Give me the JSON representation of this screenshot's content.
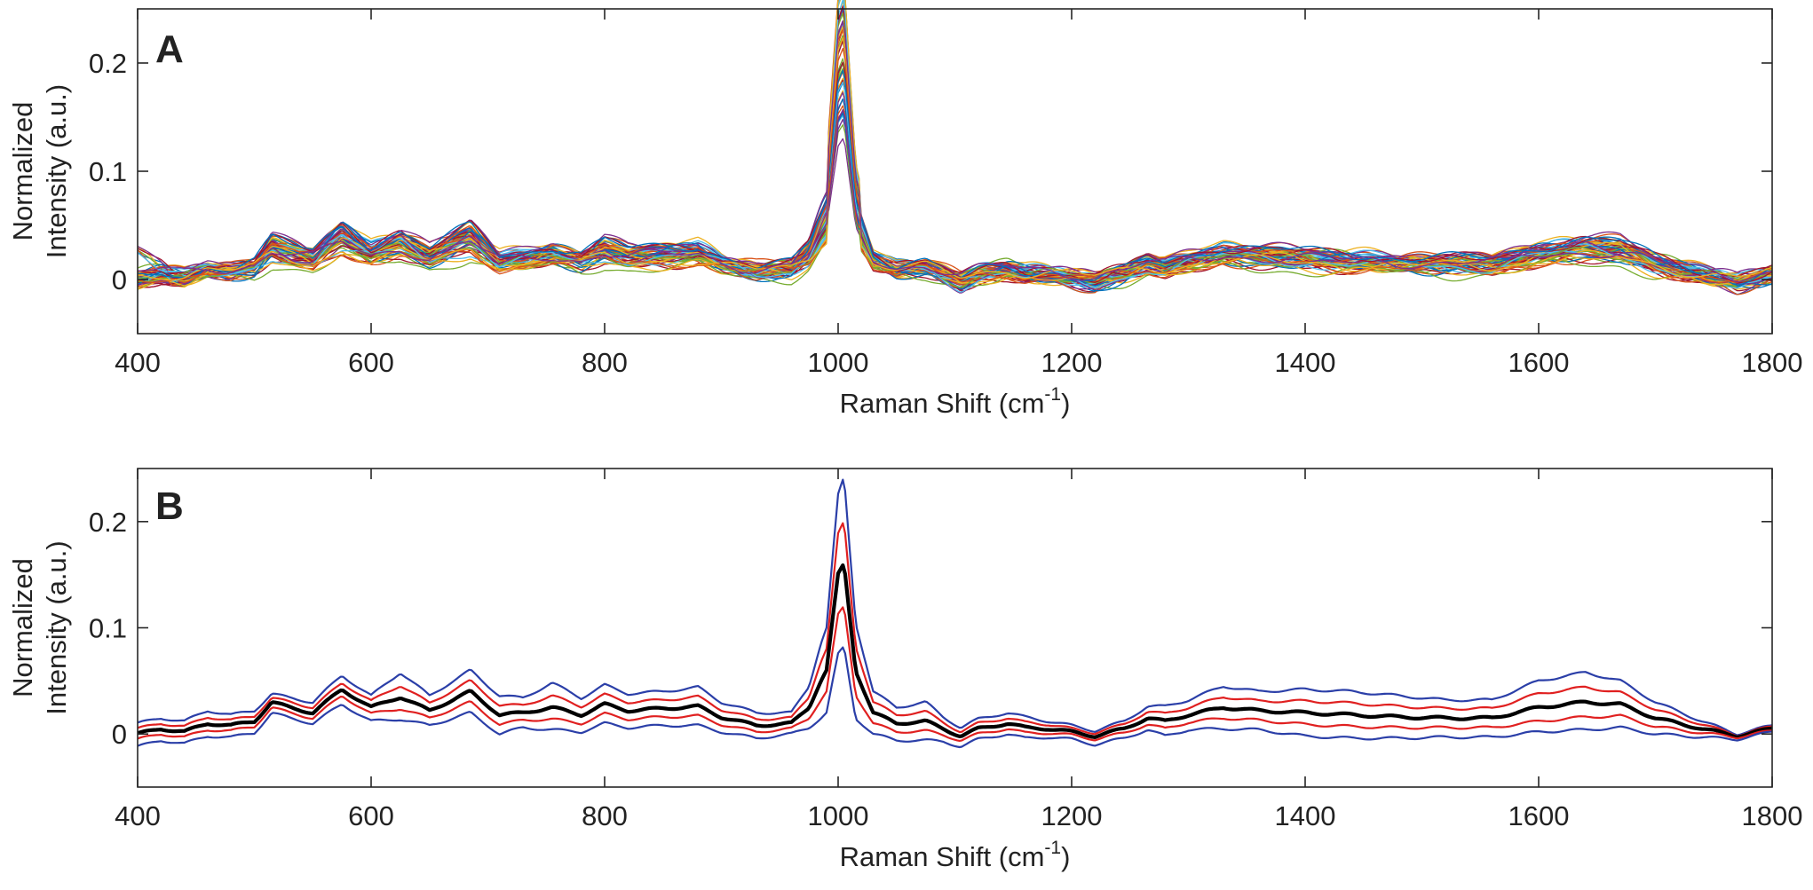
{
  "chart_data": [
    {
      "panel_label": "A",
      "type": "line",
      "xlabel": "Raman Shift (cm",
      "xlabel_sup": "-1",
      "xlabel_tail": ")",
      "ylabel_line1": "Normalized",
      "ylabel_line2": "Intensity (a.u.)",
      "xlim": [
        400,
        1800
      ],
      "ylim": [
        -0.05,
        0.25
      ],
      "xticks": [
        400,
        600,
        800,
        1000,
        1200,
        1400,
        1600,
        1800
      ],
      "xtick_labels": [
        "400",
        "600",
        "800",
        "1000",
        "1200",
        "1400",
        "1600",
        "1800"
      ],
      "yticks": [
        0,
        0.1,
        0.2
      ],
      "ytick_labels": [
        "0",
        "0.1",
        "0.2"
      ],
      "grid": false,
      "legend": "none",
      "series_count_approx": 60,
      "series_colors": [
        "#0072BD",
        "#D95319",
        "#EDB120",
        "#7E2F8E",
        "#77AC30",
        "#4DBEEE",
        "#A2142F"
      ],
      "reference_spectrum": {
        "x": [
          400,
          420,
          440,
          460,
          480,
          500,
          515,
          530,
          550,
          575,
          600,
          625,
          650,
          685,
          710,
          730,
          755,
          780,
          800,
          820,
          850,
          880,
          900,
          930,
          960,
          975,
          985,
          990,
          1000,
          1005,
          1015,
          1030,
          1050,
          1075,
          1090,
          1105,
          1120,
          1145,
          1160,
          1180,
          1200,
          1220,
          1245,
          1265,
          1280,
          1300,
          1330,
          1360,
          1400,
          1440,
          1480,
          1520,
          1560,
          1600,
          1640,
          1670,
          1700,
          1740,
          1770,
          1800
        ],
        "y": [
          0.0,
          0.005,
          0.002,
          0.01,
          0.008,
          0.012,
          0.03,
          0.025,
          0.02,
          0.042,
          0.025,
          0.035,
          0.022,
          0.04,
          0.018,
          0.02,
          0.025,
          0.018,
          0.028,
          0.022,
          0.024,
          0.026,
          0.016,
          0.008,
          0.01,
          0.025,
          0.05,
          0.06,
          0.15,
          0.16,
          0.06,
          0.02,
          0.01,
          0.012,
          0.005,
          -0.002,
          0.005,
          0.01,
          0.006,
          0.005,
          0.002,
          -0.002,
          0.005,
          0.015,
          0.012,
          0.018,
          0.025,
          0.022,
          0.02,
          0.018,
          0.016,
          0.015,
          0.015,
          0.025,
          0.03,
          0.028,
          0.015,
          0.005,
          -0.002,
          0.005
        ]
      }
    },
    {
      "panel_label": "B",
      "type": "line",
      "xlabel": "Raman Shift (cm",
      "xlabel_sup": "-1",
      "xlabel_tail": ")",
      "ylabel_line1": "Normalized",
      "ylabel_line2": "Intensity (a.u.)",
      "xlim": [
        400,
        1800
      ],
      "ylim": [
        -0.05,
        0.25
      ],
      "xticks": [
        400,
        600,
        800,
        1000,
        1200,
        1400,
        1600,
        1800
      ],
      "xtick_labels": [
        "400",
        "600",
        "800",
        "1000",
        "1200",
        "1400",
        "1600",
        "1800"
      ],
      "yticks": [
        0,
        0.1,
        0.2
      ],
      "ytick_labels": [
        "0",
        "0.1",
        "0.2"
      ],
      "grid": false,
      "legend": "none",
      "x": [
        400,
        420,
        440,
        460,
        480,
        500,
        515,
        530,
        550,
        575,
        600,
        625,
        650,
        685,
        710,
        730,
        755,
        780,
        800,
        820,
        850,
        880,
        900,
        930,
        960,
        975,
        985,
        990,
        1000,
        1005,
        1015,
        1030,
        1050,
        1075,
        1090,
        1105,
        1120,
        1145,
        1160,
        1180,
        1200,
        1220,
        1245,
        1265,
        1280,
        1300,
        1330,
        1360,
        1400,
        1440,
        1480,
        1520,
        1560,
        1600,
        1640,
        1670,
        1700,
        1740,
        1770,
        1800
      ],
      "series": [
        {
          "role": "outer-upper",
          "color": "#2B3FA8",
          "width": 2.2,
          "values": [
            0.01,
            0.015,
            0.012,
            0.022,
            0.018,
            0.022,
            0.038,
            0.034,
            0.03,
            0.055,
            0.036,
            0.058,
            0.036,
            0.06,
            0.036,
            0.034,
            0.048,
            0.034,
            0.046,
            0.038,
            0.04,
            0.044,
            0.03,
            0.02,
            0.02,
            0.045,
            0.085,
            0.1,
            0.225,
            0.242,
            0.105,
            0.04,
            0.025,
            0.03,
            0.016,
            0.006,
            0.014,
            0.02,
            0.016,
            0.012,
            0.008,
            0.003,
            0.012,
            0.026,
            0.026,
            0.032,
            0.045,
            0.04,
            0.042,
            0.04,
            0.036,
            0.032,
            0.032,
            0.05,
            0.058,
            0.05,
            0.03,
            0.012,
            0.0,
            0.008
          ]
        },
        {
          "role": "inner-upper",
          "color": "#E02020",
          "width": 2.2,
          "values": [
            0.005,
            0.01,
            0.007,
            0.016,
            0.013,
            0.017,
            0.034,
            0.03,
            0.025,
            0.048,
            0.031,
            0.046,
            0.029,
            0.05,
            0.027,
            0.027,
            0.036,
            0.026,
            0.037,
            0.03,
            0.032,
            0.035,
            0.023,
            0.014,
            0.015,
            0.035,
            0.068,
            0.08,
            0.188,
            0.2,
            0.083,
            0.03,
            0.018,
            0.021,
            0.011,
            0.002,
            0.01,
            0.015,
            0.011,
            0.009,
            0.005,
            0.001,
            0.009,
            0.021,
            0.019,
            0.025,
            0.035,
            0.031,
            0.031,
            0.029,
            0.026,
            0.024,
            0.024,
            0.038,
            0.044,
            0.039,
            0.023,
            0.009,
            -0.001,
            0.007
          ]
        },
        {
          "role": "mean",
          "color": "#000000",
          "width": 4.2,
          "values": [
            0.0,
            0.005,
            0.002,
            0.01,
            0.008,
            0.012,
            0.03,
            0.025,
            0.02,
            0.042,
            0.025,
            0.035,
            0.022,
            0.04,
            0.018,
            0.02,
            0.025,
            0.018,
            0.028,
            0.022,
            0.024,
            0.026,
            0.016,
            0.008,
            0.01,
            0.025,
            0.05,
            0.06,
            0.15,
            0.16,
            0.06,
            0.02,
            0.01,
            0.012,
            0.005,
            -0.002,
            0.005,
            0.01,
            0.006,
            0.005,
            0.002,
            -0.002,
            0.005,
            0.015,
            0.012,
            0.018,
            0.025,
            0.022,
            0.02,
            0.018,
            0.016,
            0.015,
            0.015,
            0.025,
            0.03,
            0.028,
            0.015,
            0.005,
            -0.002,
            0.005
          ]
        },
        {
          "role": "inner-lower",
          "color": "#E02020",
          "width": 2.2,
          "values": [
            -0.005,
            0.0,
            -0.003,
            0.004,
            0.003,
            0.007,
            0.025,
            0.02,
            0.015,
            0.036,
            0.019,
            0.024,
            0.015,
            0.03,
            0.009,
            0.013,
            0.014,
            0.01,
            0.019,
            0.014,
            0.016,
            0.017,
            0.009,
            0.002,
            0.005,
            0.015,
            0.032,
            0.04,
            0.112,
            0.12,
            0.037,
            0.01,
            0.002,
            0.003,
            -0.001,
            -0.006,
            0.0,
            0.005,
            0.001,
            0.001,
            -0.001,
            -0.005,
            0.001,
            0.009,
            0.005,
            0.011,
            0.015,
            0.013,
            0.009,
            0.007,
            0.006,
            0.006,
            0.006,
            0.012,
            0.016,
            0.017,
            0.007,
            0.001,
            -0.003,
            0.003
          ]
        },
        {
          "role": "outer-lower",
          "color": "#2B3FA8",
          "width": 2.2,
          "values": [
            -0.012,
            -0.006,
            -0.009,
            -0.002,
            -0.003,
            0.001,
            0.02,
            0.015,
            0.01,
            0.028,
            0.012,
            0.014,
            0.008,
            0.02,
            0.0,
            0.006,
            0.004,
            0.002,
            0.01,
            0.006,
            0.008,
            0.008,
            0.002,
            -0.004,
            0.0,
            0.006,
            0.015,
            0.02,
            0.075,
            0.082,
            0.015,
            0.0,
            -0.006,
            -0.006,
            -0.007,
            -0.012,
            -0.005,
            0.0,
            -0.004,
            -0.003,
            -0.005,
            -0.01,
            -0.004,
            0.004,
            -0.002,
            0.004,
            0.005,
            0.004,
            -0.002,
            -0.004,
            -0.004,
            -0.003,
            -0.003,
            0.002,
            0.004,
            0.006,
            0.0,
            -0.003,
            -0.005,
            0.002
          ]
        }
      ]
    }
  ]
}
